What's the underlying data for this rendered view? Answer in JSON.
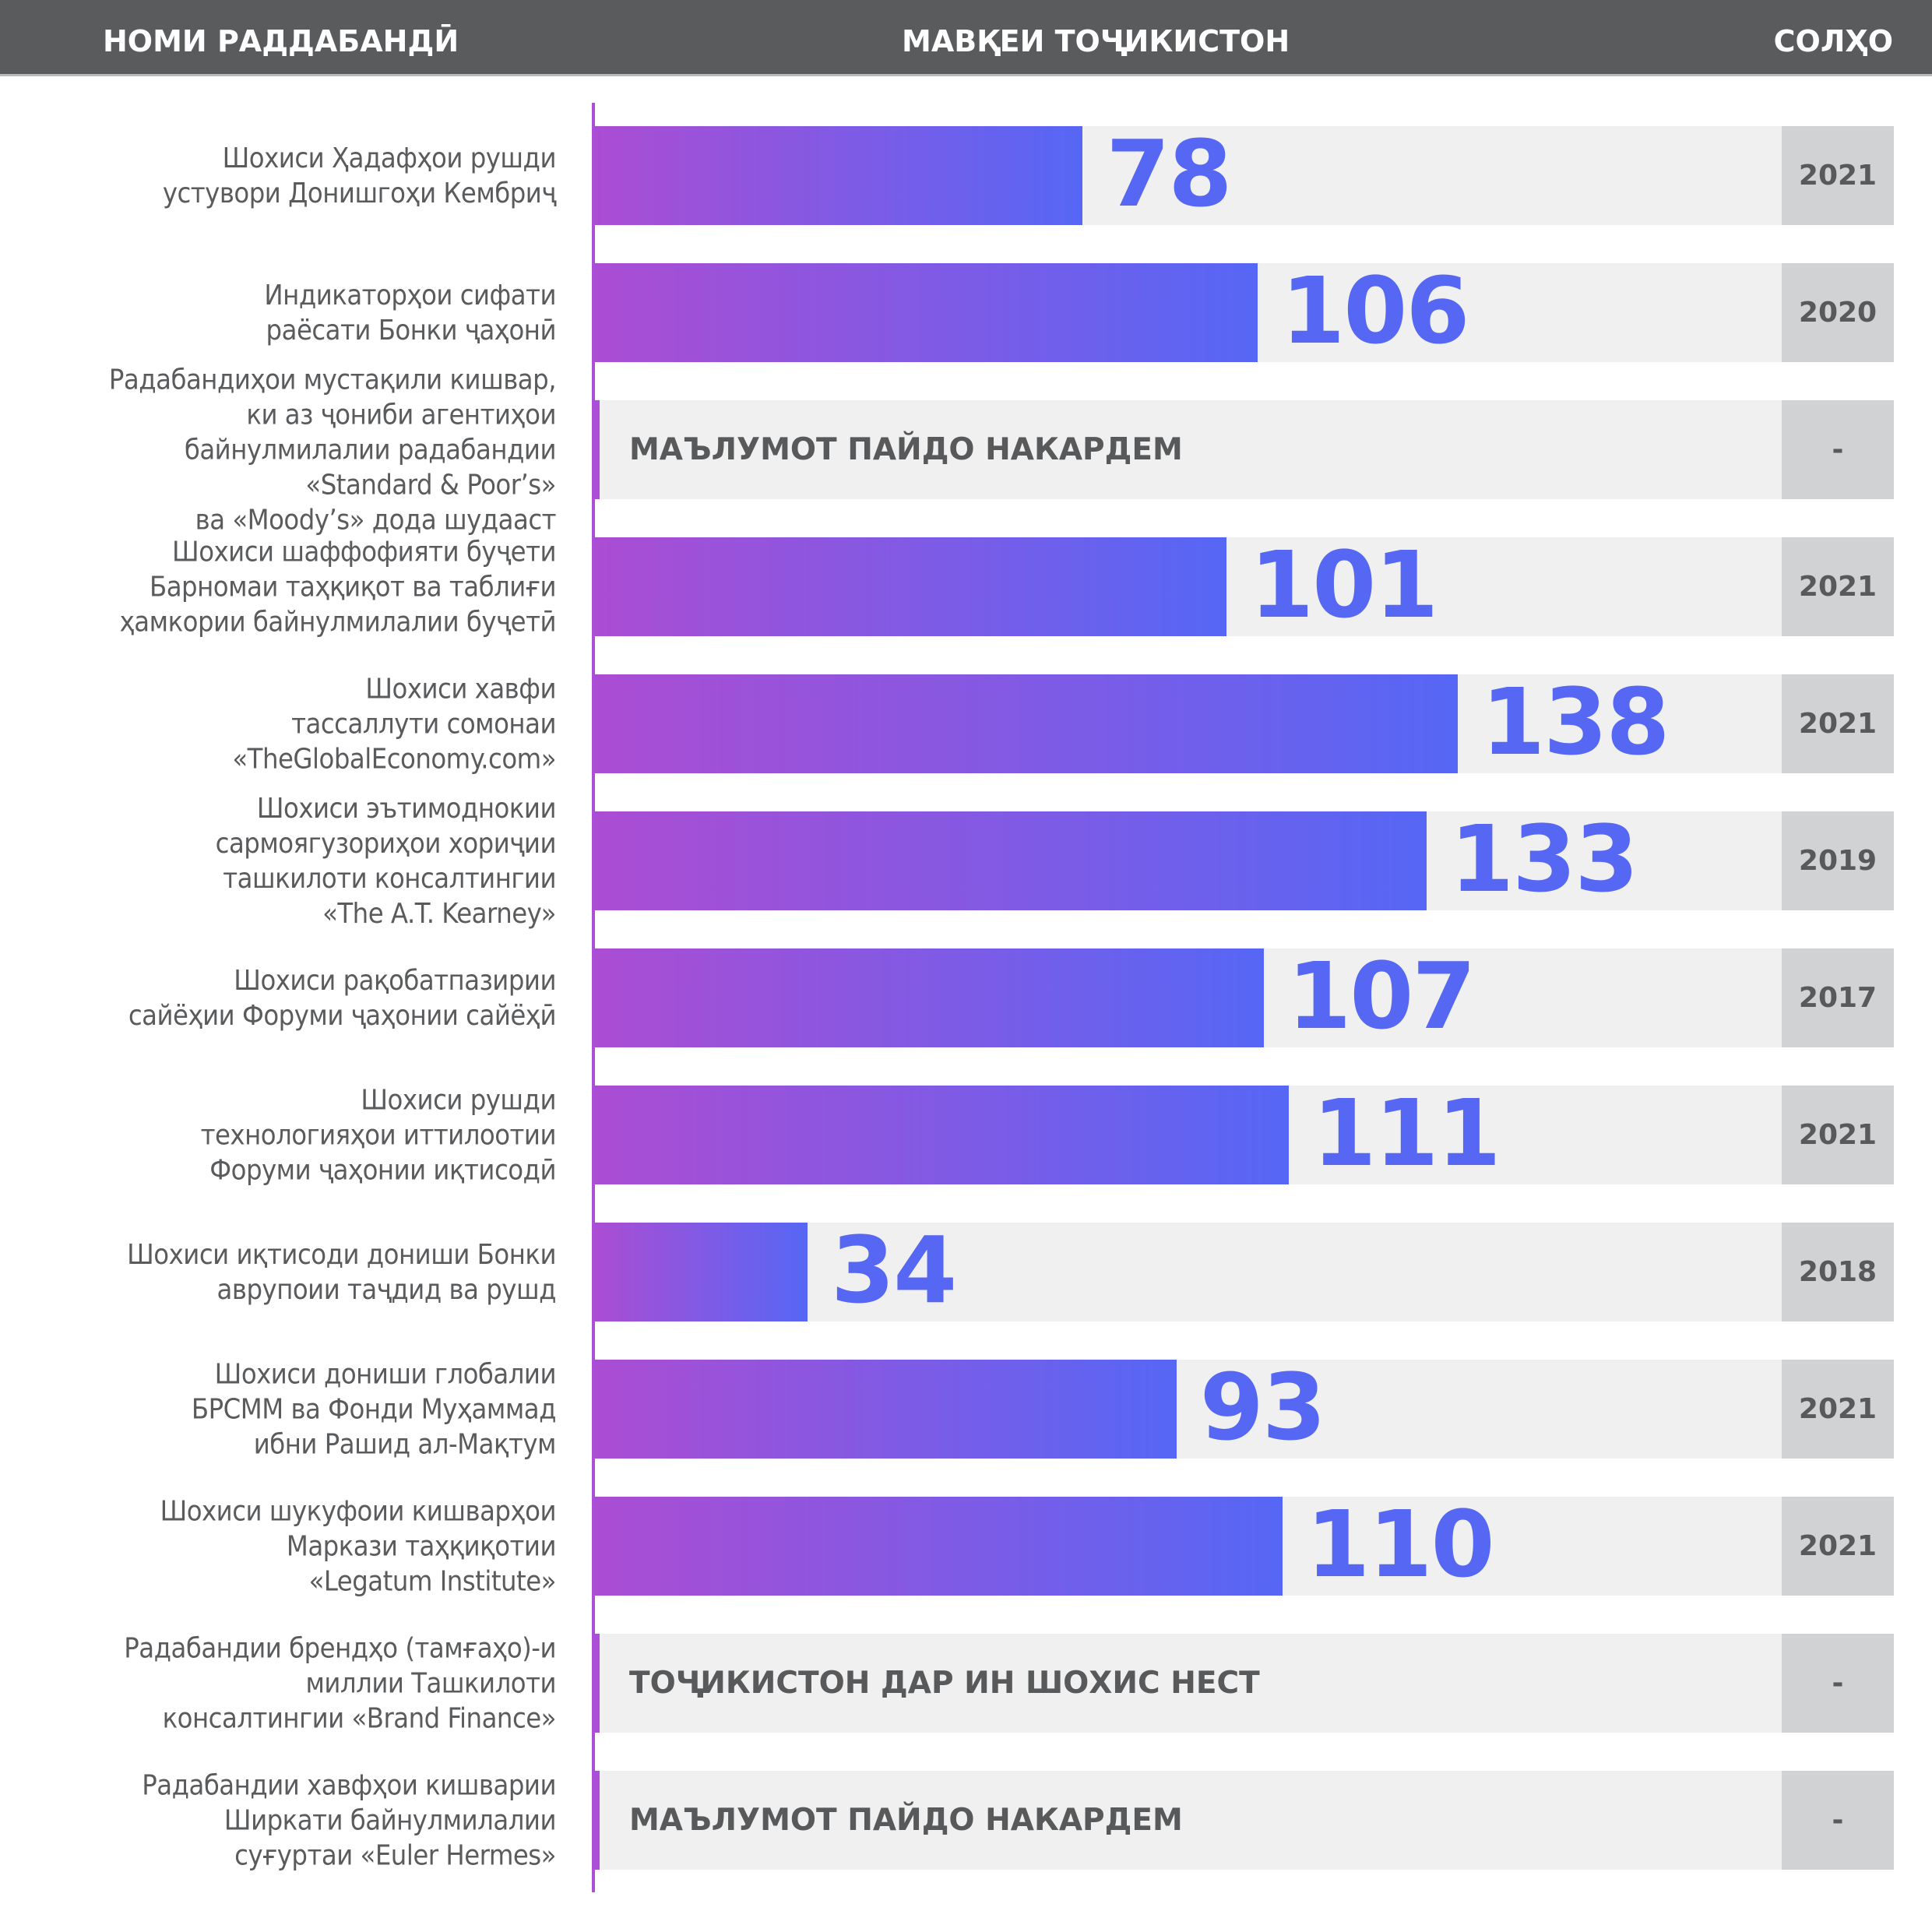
{
  "header": {
    "col_name": "НОМИ РАДДАБАНДӢ",
    "col_position": "МАВҚЕИ ТОҶИКИСТОН",
    "col_years": "СОЛҲО"
  },
  "colors": {
    "header_bg": "#5a5b5d",
    "bar_gradient_start": "#ab4dd3",
    "bar_gradient_end": "#5667f5",
    "value_text": "#5667f3",
    "track": "#f0f0f0",
    "year_box": "#d1d2d4",
    "text": "#5a5b5d"
  },
  "chart_data": {
    "type": "bar",
    "orientation": "horizontal",
    "title": "",
    "xlabel": "МАВҚЕИ ТОҶИКИСТОН",
    "ylabel": "НОМИ РАДДАБАНДӢ",
    "xlim": [
      0,
      190
    ],
    "grid": false,
    "categories": [
      "Шохиси Ҳадафҳои рушди\nустувори Донишгоҳи Кембриҷ",
      "Индикаторҳои сифати\nраёсати Бонки ҷаҳонӣ",
      "Радабандиҳои мустақили кишвар,\nки аз ҷониби агентиҳои\nбайнулмилалии радабандии\n«Standard & Poor’s»\nва «Moody’s» дода шудааст",
      "Шохиси шаффофияти буҷети\nБарномаи таҳқиқот ва таблиғи\nҳамкории байнулмилалии буҷетӣ",
      "Шохиси хавфи\nтассаллути сомонаи\n«TheGlobalEconomy.com»",
      "Шохиси эътимоднокии\nсармоягузориҳои хориҷии\nташкилоти консалтингии\n«The A.T. Kearney»",
      "Шохиси рақобатпазирии\nсайёҳии Форуми ҷаҳонии сайёҳӣ",
      "Шохиси рушди\nтехнологияҳои иттилоотии\nФоруми ҷаҳонии иқтисодӣ",
      "Шохиси иқтисоди дониши Бонки\nаврупоии таҷдид ва рушд",
      "Шохиси дониши глобалии\nБРСММ ва Фонди Муҳаммад\nибни Рашид ал-Мақтум",
      "Шохиси шукуфоии кишварҳои\nМаркази таҳқиқотии\n«Legatum Institute»",
      "Радабандии брендҳо (тамғаҳо)-и\nмиллии Ташкилоти\nконсалтингии «Brand Finance»",
      "Радабандии хавфҳои кишварии\nШиркати байнулмилалии\nсуғуртаи «Euler Hermes»"
    ],
    "values": [
      78,
      106,
      null,
      101,
      138,
      133,
      107,
      111,
      34,
      93,
      110,
      null,
      null
    ],
    "notes": [
      null,
      null,
      "МАЪЛУМОТ ПАЙДО НАКАРДЕМ",
      null,
      null,
      null,
      null,
      null,
      null,
      null,
      null,
      "ТОҶИКИСТОН ДАР ИН ШОХИС НЕСТ",
      "МАЪЛУМОТ ПАЙДО НАКАРДЕМ"
    ],
    "years": [
      "2021",
      "2020",
      "-",
      "2021",
      "2021",
      "2019",
      "2017",
      "2021",
      "2018",
      "2021",
      "2021",
      "-",
      "-"
    ]
  }
}
